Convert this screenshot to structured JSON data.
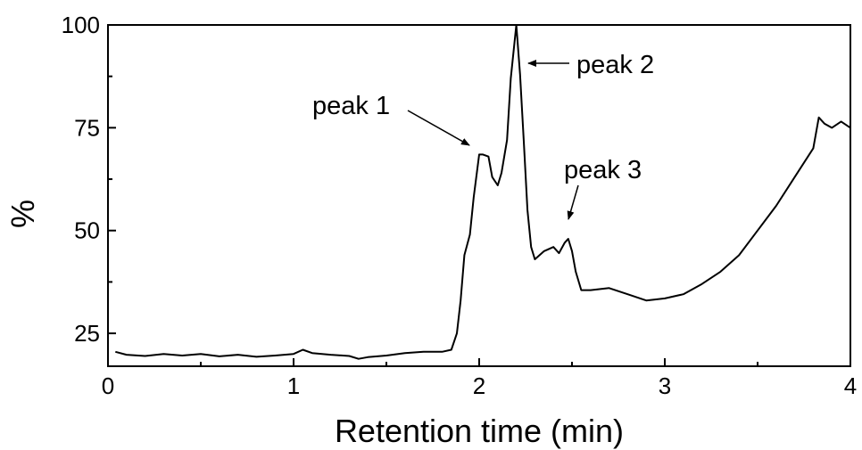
{
  "chart_data": {
    "type": "line",
    "xlabel": "Retention time (min)",
    "ylabel": "%",
    "xlim": [
      0,
      4
    ],
    "ylim": [
      17,
      100
    ],
    "xticks": [
      0,
      1,
      2,
      3,
      4
    ],
    "xtick_labels": [
      "0",
      "1",
      "2",
      "3",
      "4"
    ],
    "yticks": [
      25,
      50,
      75,
      100
    ],
    "ytick_labels": [
      "25",
      "50",
      "75",
      "100"
    ],
    "grid": false,
    "legend": "none",
    "line_color": "#000000",
    "series": [
      {
        "x": [
          0.04,
          0.1,
          0.2,
          0.3,
          0.4,
          0.5,
          0.6,
          0.7,
          0.8,
          0.9,
          1.0,
          1.05,
          1.1,
          1.2,
          1.3,
          1.35,
          1.4,
          1.5,
          1.6,
          1.7,
          1.8,
          1.85,
          1.88,
          1.9,
          1.92,
          1.95,
          1.97,
          2.0,
          2.02,
          2.05,
          2.07,
          2.1,
          2.12,
          2.15,
          2.17,
          2.2,
          2.22,
          2.24,
          2.26,
          2.28,
          2.3,
          2.35,
          2.4,
          2.43,
          2.46,
          2.48,
          2.5,
          2.52,
          2.55,
          2.6,
          2.7,
          2.8,
          2.9,
          3.0,
          3.1,
          3.2,
          3.3,
          3.4,
          3.5,
          3.6,
          3.7,
          3.8,
          3.83,
          3.86,
          3.9,
          3.95,
          4.0
        ],
        "y": [
          20.5,
          19.8,
          19.5,
          20.0,
          19.6,
          20.0,
          19.4,
          19.8,
          19.3,
          19.6,
          20.0,
          21.0,
          20.2,
          19.8,
          19.5,
          18.8,
          19.2,
          19.6,
          20.2,
          20.5,
          20.5,
          21.0,
          25.0,
          33.0,
          44.0,
          49.0,
          58.0,
          68.5,
          68.5,
          68.0,
          63.0,
          61.0,
          64.0,
          72.0,
          87.0,
          100.0,
          88.0,
          72.0,
          55.0,
          46.0,
          43.0,
          45.0,
          46.0,
          44.5,
          47.0,
          48.0,
          45.0,
          40.0,
          35.5,
          35.5,
          36.0,
          34.5,
          33.0,
          33.5,
          34.5,
          37.0,
          40.0,
          44.0,
          50.0,
          56.0,
          63.0,
          70.0,
          77.5,
          76.0,
          75.0,
          76.5,
          75.0
        ]
      }
    ],
    "annotations": [
      {
        "text": "peak 1",
        "x": 2.02,
        "y": 71
      },
      {
        "text": "peak 2",
        "x": 2.23,
        "y": 95.5
      },
      {
        "text": "peak 3",
        "x": 2.5,
        "y": 49
      }
    ]
  }
}
